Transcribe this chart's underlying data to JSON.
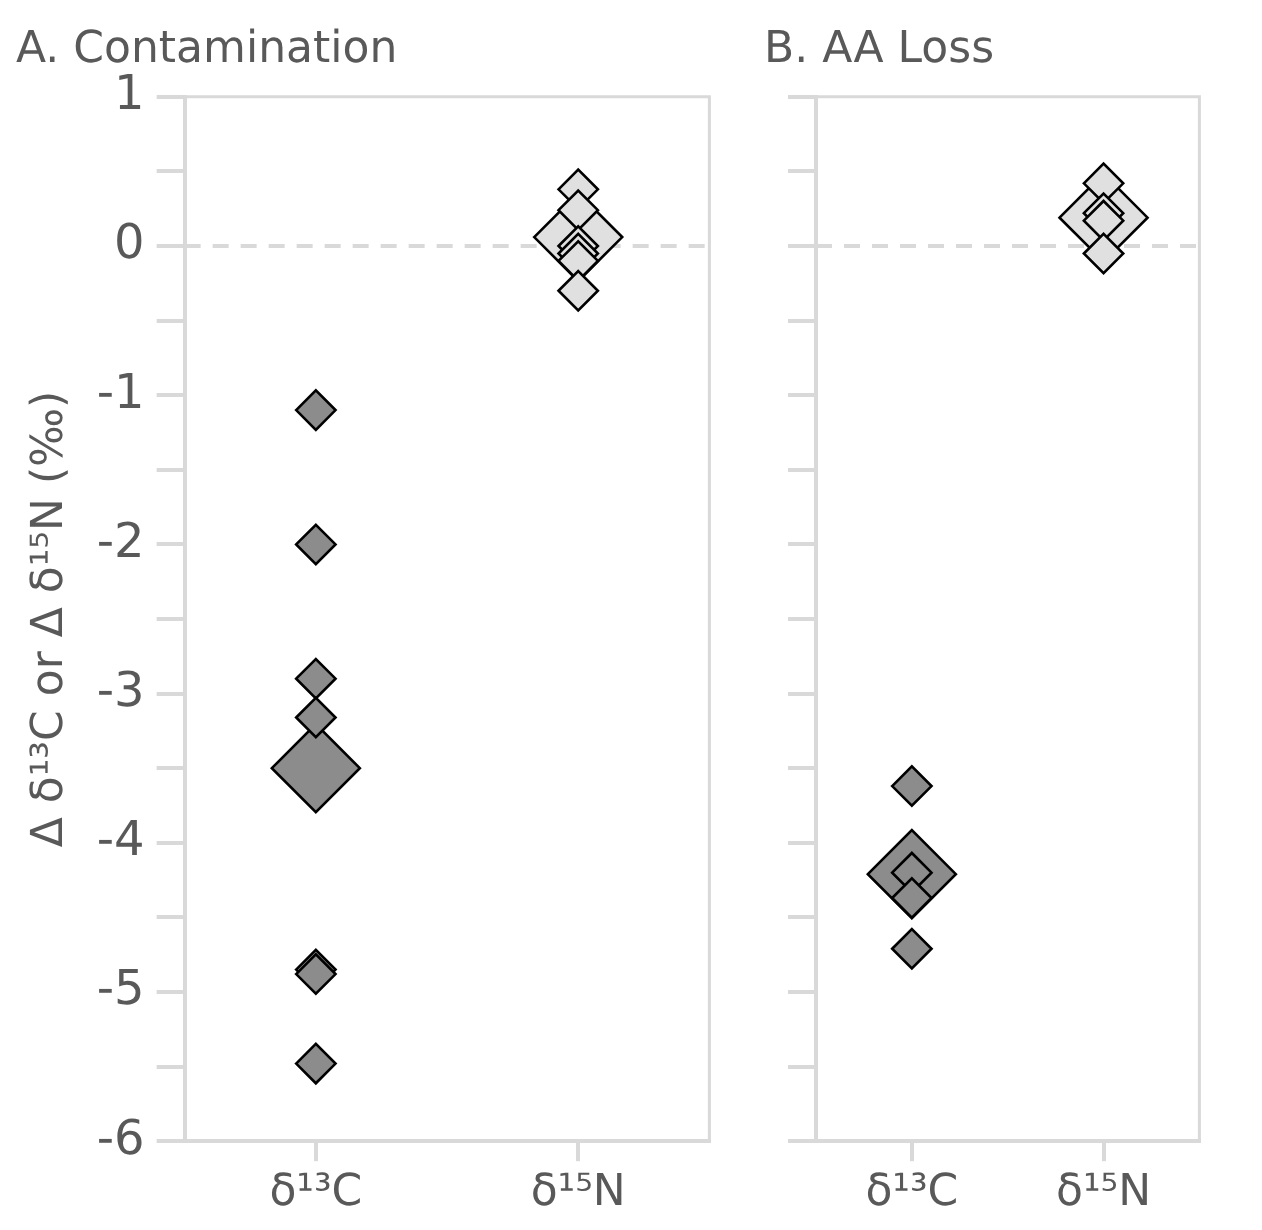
{
  "chart_data": [
    {
      "type": "scatter",
      "title": "A. Contamination",
      "ylabel": "Δ δ¹³C or Δ δ¹⁵N (‰)",
      "categories": [
        "δ¹³C",
        "δ¹⁵N"
      ],
      "ylim": [
        -6,
        1
      ],
      "yticks": [
        -6,
        -5,
        -4,
        -3,
        -2,
        -1,
        0,
        1
      ],
      "marker": "diamond",
      "grid": false,
      "legend": false,
      "ref_lines": [
        {
          "axis": "y",
          "value": 0,
          "color": "#d9d9d9",
          "line_style": "dashed"
        }
      ],
      "series": [
        {
          "type": "bubble",
          "color": "#8c8c8c",
          "x": [
            "δ¹³C"
          ],
          "values": [
            -3.5
          ],
          "sizes": [
            1
          ]
        },
        {
          "type": "bubble",
          "color": "#8c8c8c",
          "x": [
            "δ¹³C",
            "δ¹³C",
            "δ¹³C",
            "δ¹³C",
            "δ¹³C",
            "δ¹³C",
            "δ¹³C"
          ],
          "values": [
            -1.1,
            -2.0,
            -2.9,
            -3.16,
            -4.85,
            -4.88,
            -5.48
          ],
          "sizes": [
            0.2,
            0.2,
            0.2,
            0.2,
            0.2,
            0.2,
            0.2
          ]
        },
        {
          "type": "bubble",
          "color": "#e0e0e0",
          "x": [
            "δ¹⁵N"
          ],
          "values": [
            0.06
          ],
          "sizes": [
            1
          ]
        },
        {
          "type": "bubble",
          "color": "#e0e0e0",
          "x": [
            "δ¹⁵N",
            "δ¹⁵N",
            "δ¹⁵N",
            "δ¹⁵N",
            "δ¹⁵N",
            "δ¹⁵N"
          ],
          "values": [
            0.38,
            0.24,
            0.0,
            -0.05,
            -0.1,
            -0.3
          ],
          "sizes": [
            0.2,
            0.2,
            0.2,
            0.2,
            0.2,
            0.2
          ]
        }
      ]
    },
    {
      "type": "scatter",
      "title": "B. AA Loss",
      "categories": [
        "δ¹³C",
        "δ¹⁵N"
      ],
      "ylim": [
        -6,
        1
      ],
      "yticks": [
        -6,
        -5,
        -4,
        -3,
        -2,
        -1,
        0,
        1
      ],
      "tick_labels": "x",
      "marker": "diamond",
      "grid": false,
      "legend": false,
      "ref_lines": [
        {
          "axis": "y",
          "value": 0,
          "color": "#d9d9d9",
          "line_style": "dashed"
        }
      ],
      "series": [
        {
          "type": "bubble",
          "color": "#8c8c8c",
          "x": [
            "δ¹³C"
          ],
          "values": [
            -4.21
          ],
          "sizes": [
            1
          ]
        },
        {
          "type": "bubble",
          "color": "#8c8c8c",
          "x": [
            "δ¹³C",
            "δ¹³C",
            "δ¹³C",
            "δ¹³C"
          ],
          "values": [
            -3.62,
            -4.2,
            -4.37,
            -4.71
          ],
          "sizes": [
            0.2,
            0.2,
            0.2,
            0.2
          ]
        },
        {
          "type": "bubble",
          "color": "#e0e0e0",
          "x": [
            "δ¹⁵N"
          ],
          "values": [
            0.19
          ],
          "sizes": [
            1
          ]
        },
        {
          "type": "bubble",
          "color": "#e0e0e0",
          "x": [
            "δ¹⁵N",
            "δ¹⁵N",
            "δ¹⁵N",
            "δ¹⁵N"
          ],
          "values": [
            0.42,
            0.22,
            0.17,
            -0.05
          ],
          "sizes": [
            0.2,
            0.2,
            0.2,
            0.2
          ]
        }
      ]
    }
  ]
}
